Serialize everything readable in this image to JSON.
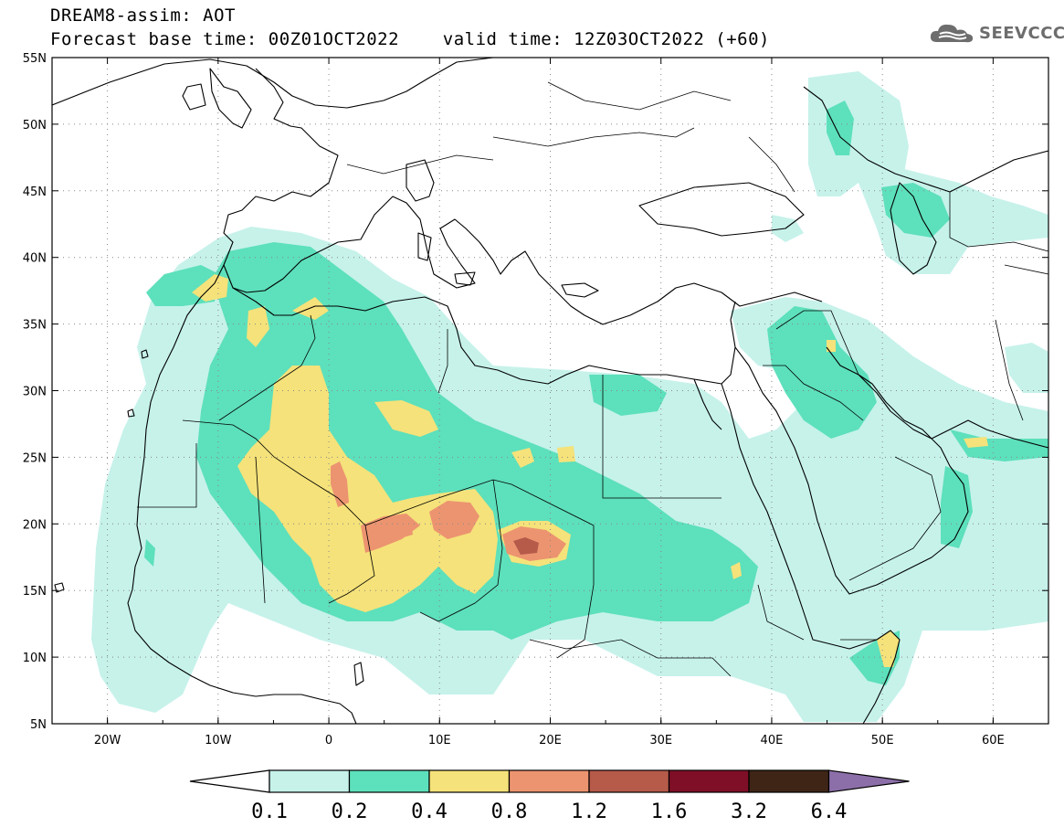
{
  "title": {
    "line1": "DREAM8-assim: AOT",
    "line2": "Forecast base time: 00Z01OCT2022    valid time: 12Z03OCT2022 (+60)"
  },
  "logo": {
    "text": "SEEVCCC",
    "icon": "cloud-icon"
  },
  "map": {
    "projection": "lat-lon",
    "lon_range": [
      -25,
      65
    ],
    "lat_range": [
      5,
      55
    ],
    "grid": "dotted",
    "background": "#ffffff",
    "lat_labels": [
      "55N",
      "50N",
      "45N",
      "40N",
      "35N",
      "30N",
      "25N",
      "20N",
      "15N",
      "10N",
      "5N"
    ],
    "lat_values": [
      55,
      50,
      45,
      40,
      35,
      30,
      25,
      20,
      15,
      10,
      5
    ],
    "lon_labels": [
      "20W",
      "10W",
      "0",
      "10E",
      "20E",
      "30E",
      "40E",
      "50E",
      "60E"
    ],
    "lon_values": [
      -20,
      -10,
      0,
      10,
      20,
      30,
      40,
      50,
      60
    ]
  },
  "colorbar": {
    "labels": [
      "0.1",
      "0.2",
      "0.4",
      "0.8",
      "1.2",
      "1.6",
      "3.2",
      "6.4"
    ],
    "colors": [
      "#c6f2ea",
      "#5de0bc",
      "#f5e27a",
      "#ec9470",
      "#b65a4a",
      "#7e0f26",
      "#3e2516",
      "#8c6fa8"
    ],
    "under_color": "#ffffff"
  }
}
